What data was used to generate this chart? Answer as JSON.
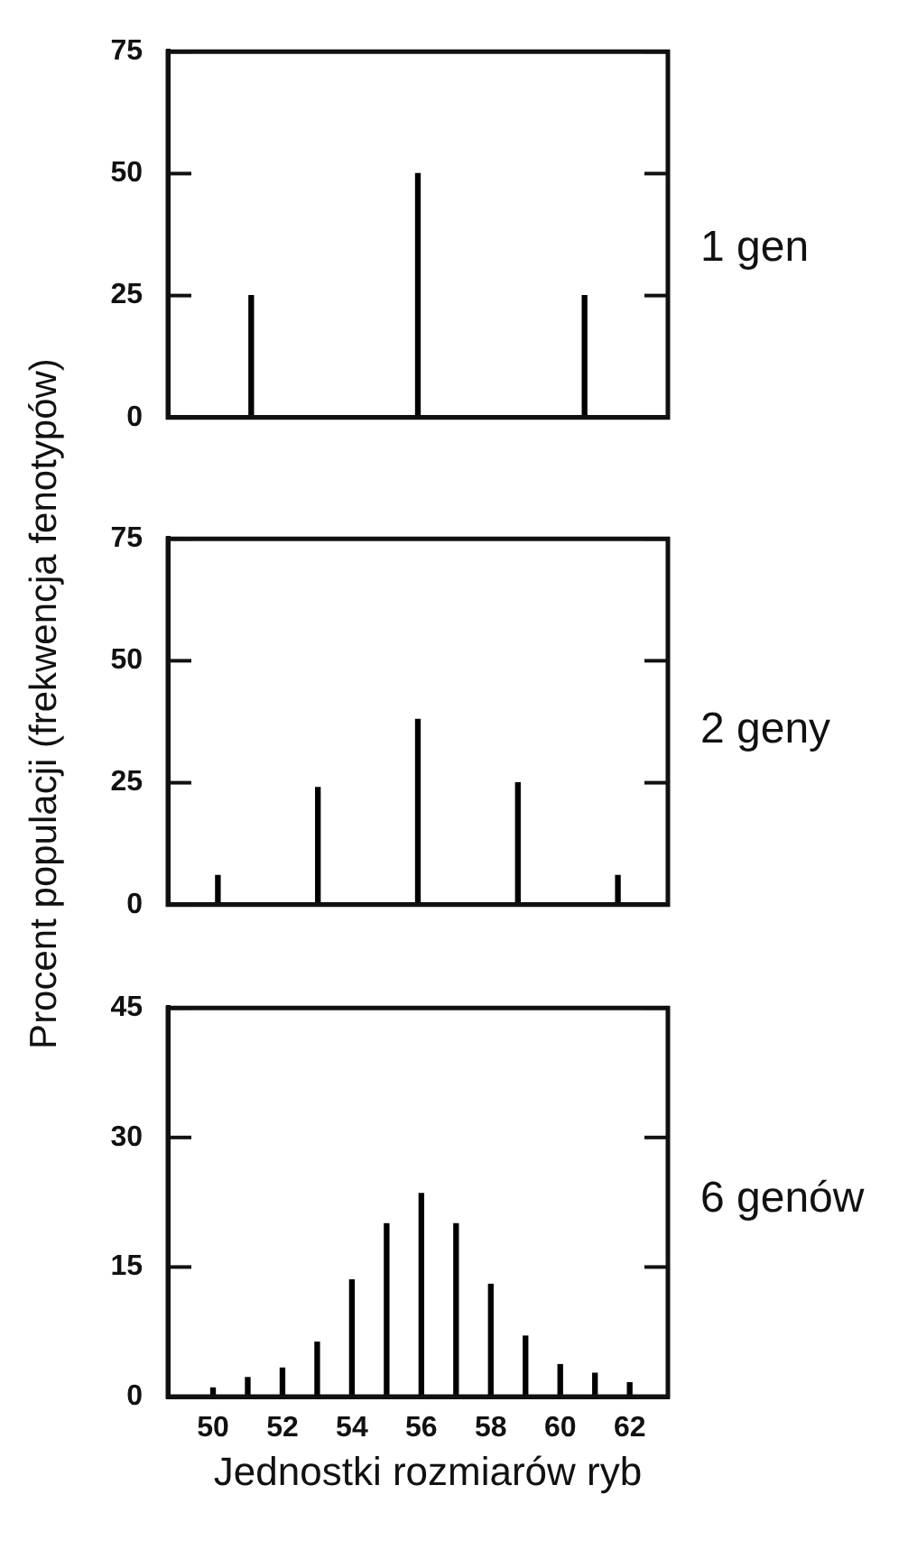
{
  "chart_data": [
    {
      "type": "bar",
      "annotations": [
        "1 gen"
      ],
      "categories": [
        null,
        null,
        null
      ],
      "values": [
        25,
        50,
        25
      ],
      "color": "#000000",
      "ylim": [
        0,
        75
      ],
      "yticks": [
        0,
        25,
        50,
        75
      ],
      "grid": false,
      "tick_labels": "y"
    },
    {
      "type": "bar",
      "annotations": [
        "2 geny"
      ],
      "ylabel": "Procent populacji (frekwencja fenotypów)",
      "categories": [
        null,
        null,
        null,
        null,
        null
      ],
      "values": [
        6,
        24,
        38,
        25,
        6
      ],
      "color": "#000000",
      "ylim": [
        0,
        75
      ],
      "yticks": [
        0,
        25,
        50,
        75
      ],
      "grid": false,
      "tick_labels": "y"
    },
    {
      "type": "bar",
      "annotations": [
        "6 genów"
      ],
      "xlabel": "Jednostki rozmiarów ryb",
      "x": [
        50,
        51,
        52,
        53,
        54,
        55,
        56,
        57,
        58,
        59,
        60,
        61,
        62
      ],
      "values": [
        1,
        2.2,
        3.3,
        6.3,
        13.5,
        20,
        23.5,
        20,
        13,
        7,
        3.7,
        2.7,
        1.6
      ],
      "color": "#000000",
      "xlim": [
        48.7,
        63.1
      ],
      "xticks": [
        50,
        52,
        54,
        56,
        58,
        60,
        62
      ],
      "ylim": [
        0,
        45
      ],
      "yticks": [
        0,
        15,
        30,
        45
      ],
      "grid": false
    }
  ]
}
